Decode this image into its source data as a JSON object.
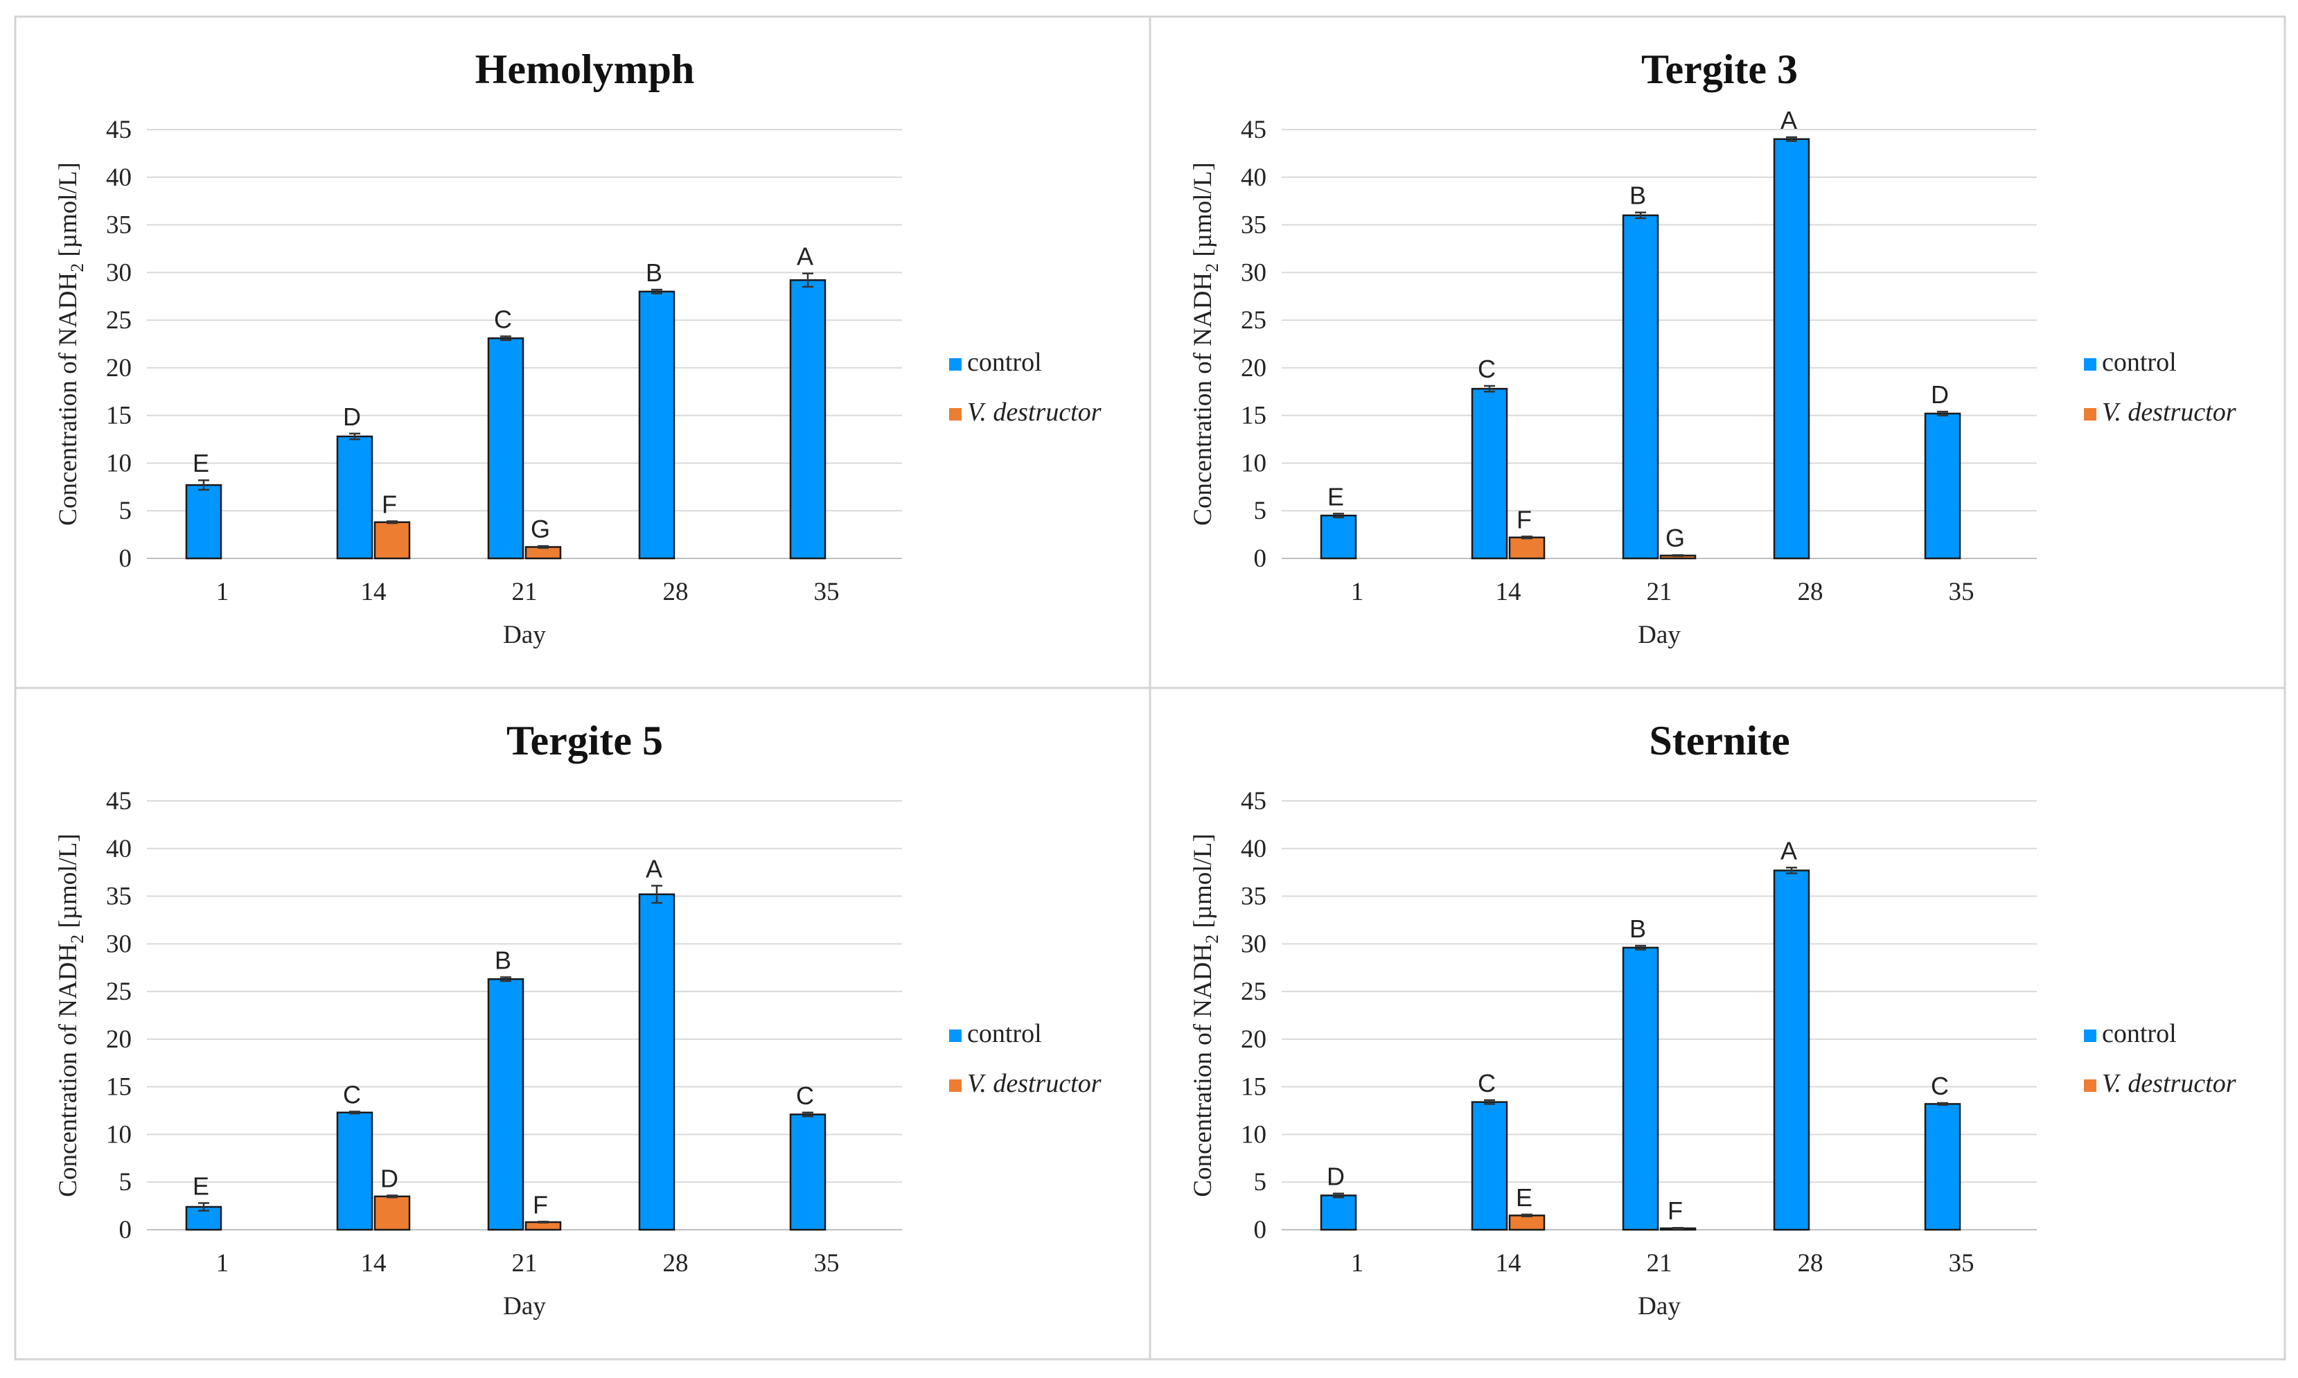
{
  "colors": {
    "control": "#0096ff",
    "destructor": "#ed7d31"
  },
  "chart_data": [
    {
      "type": "bar",
      "title": "Hemolymph",
      "xlabel": "Day",
      "ylabel_prefix": "Concentration of NADH",
      "ylabel_sub": "2",
      "ylabel_suffix": " [µmol/L]",
      "ylim": [
        0,
        45
      ],
      "yticks": [
        "0",
        "5",
        "10",
        "15",
        "20",
        "25",
        "30",
        "35",
        "40",
        "45"
      ],
      "categories": [
        "1",
        "14",
        "21",
        "28",
        "35"
      ],
      "series": [
        {
          "name": "control",
          "italic": false,
          "values": [
            7.7,
            12.8,
            23.1,
            28.0,
            29.2
          ],
          "errors": [
            0.5,
            0.3,
            0.2,
            0.2,
            0.7
          ],
          "labels": [
            "E",
            "D",
            "C",
            "B",
            "A"
          ]
        },
        {
          "name": "V. destructor",
          "italic": true,
          "values": [
            0,
            3.8,
            1.2,
            0,
            0
          ],
          "errors": [
            0,
            0.1,
            0.1,
            0,
            0
          ],
          "labels": [
            "",
            "F",
            "G",
            "",
            ""
          ]
        }
      ]
    },
    {
      "type": "bar",
      "title": "Tergite 3",
      "xlabel": "Day",
      "ylabel_prefix": "Concentration of NADH",
      "ylabel_sub": "2",
      "ylabel_suffix": " [µmol/L]",
      "ylim": [
        0,
        45
      ],
      "yticks": [
        "0",
        "5",
        "10",
        "15",
        "20",
        "25",
        "30",
        "35",
        "40",
        "45"
      ],
      "categories": [
        "1",
        "14",
        "21",
        "28",
        "35"
      ],
      "series": [
        {
          "name": "control",
          "italic": false,
          "values": [
            4.5,
            17.8,
            36.0,
            44.0,
            15.2
          ],
          "errors": [
            0.2,
            0.3,
            0.3,
            0.2,
            0.2
          ],
          "labels": [
            "E",
            "C",
            "B",
            "A",
            "D"
          ]
        },
        {
          "name": "V. destructor",
          "italic": true,
          "values": [
            0,
            2.2,
            0.3,
            0,
            0
          ],
          "errors": [
            0,
            0.1,
            0.05,
            0,
            0
          ],
          "labels": [
            "",
            "F",
            "G",
            "",
            ""
          ]
        }
      ]
    },
    {
      "type": "bar",
      "title": "Tergite 5",
      "xlabel": "Day",
      "ylabel_prefix": "Concentration of NADH",
      "ylabel_sub": "2",
      "ylabel_suffix": " [µmol/L]",
      "ylim": [
        0,
        45
      ],
      "yticks": [
        "0",
        "5",
        "10",
        "15",
        "20",
        "25",
        "30",
        "35",
        "40",
        "45"
      ],
      "categories": [
        "1",
        "14",
        "21",
        "28",
        "35"
      ],
      "series": [
        {
          "name": "control",
          "italic": false,
          "values": [
            2.4,
            12.3,
            26.3,
            35.2,
            12.1
          ],
          "errors": [
            0.4,
            0.1,
            0.2,
            0.9,
            0.2
          ],
          "labels": [
            "E",
            "C",
            "B",
            "A",
            "C"
          ]
        },
        {
          "name": "V. destructor",
          "italic": true,
          "values": [
            0,
            3.5,
            0.8,
            0,
            0
          ],
          "errors": [
            0,
            0.1,
            0.05,
            0,
            0
          ],
          "labels": [
            "",
            "D",
            "F",
            "",
            ""
          ]
        }
      ]
    },
    {
      "type": "bar",
      "title": "Sternite",
      "xlabel": "Day",
      "ylabel_prefix": "Concentration of NADH",
      "ylabel_sub": "2",
      "ylabel_suffix": " [µmol/L]",
      "ylim": [
        0,
        45
      ],
      "yticks": [
        "0",
        "5",
        "10",
        "15",
        "20",
        "25",
        "30",
        "35",
        "40",
        "45"
      ],
      "categories": [
        "1",
        "14",
        "21",
        "28",
        "35"
      ],
      "series": [
        {
          "name": "control",
          "italic": false,
          "values": [
            3.6,
            13.4,
            29.6,
            37.7,
            13.2
          ],
          "errors": [
            0.2,
            0.2,
            0.2,
            0.3,
            0.1
          ],
          "labels": [
            "D",
            "C",
            "B",
            "A",
            "C"
          ]
        },
        {
          "name": "V. destructor",
          "italic": true,
          "values": [
            0,
            1.5,
            0.15,
            0,
            0
          ],
          "errors": [
            0,
            0.1,
            0.05,
            0,
            0
          ],
          "labels": [
            "",
            "E",
            "F",
            "",
            ""
          ]
        }
      ]
    }
  ]
}
